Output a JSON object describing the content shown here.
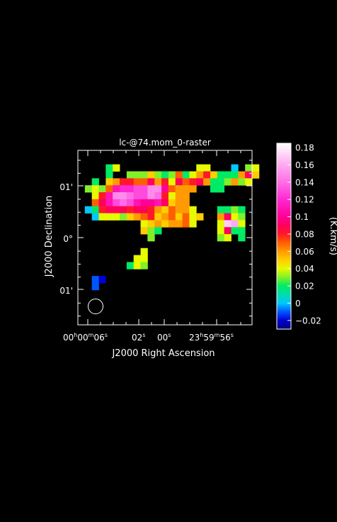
{
  "chart_data": {
    "type": "heatmap",
    "title": "lc-@74.mom_0-raster",
    "xlabel": "J2000 Right Ascension",
    "ylabel": "J2000 Declination",
    "colorbar_label": "(K.km/s)",
    "colorbar_range": [
      -0.03,
      0.185
    ],
    "colorbar_ticks": [
      "0.18",
      "0.16",
      "0.14",
      "0.12",
      "0.1",
      "0.08",
      "0.06",
      "0.04",
      "0.02",
      "0",
      "−0.02"
    ],
    "colorbar_tick_values": [
      0.18,
      0.16,
      0.14,
      0.12,
      0.1,
      0.08,
      0.06,
      0.04,
      0.02,
      0,
      -0.02
    ],
    "x_ticks": [
      {
        "h": "00",
        "m": "00",
        "s": "06"
      },
      {
        "h": "",
        "m": "",
        "s": "02"
      },
      {
        "h": "",
        "m": "",
        "s": "00"
      },
      {
        "h": "23",
        "m": "59",
        "s": "56"
      }
    ],
    "y_ticks": [
      "01'",
      "0°",
      "01'"
    ],
    "grid": {
      "cols": 25,
      "rows": 25,
      "missing_value": "nan",
      "pixels": [
        [
          4,
          2,
          0.02
        ],
        [
          5,
          2,
          0.04
        ],
        [
          17,
          2,
          0.04
        ],
        [
          18,
          2,
          0.04
        ],
        [
          22,
          2,
          0.0
        ],
        [
          24,
          2,
          0.03
        ],
        [
          25,
          2,
          0.04
        ],
        [
          4,
          3,
          0.02
        ],
        [
          7,
          3,
          0.03
        ],
        [
          8,
          3,
          0.03
        ],
        [
          9,
          3,
          0.03
        ],
        [
          10,
          3,
          0.05
        ],
        [
          11,
          3,
          0.03
        ],
        [
          12,
          3,
          0.02
        ],
        [
          13,
          3,
          0.03
        ],
        [
          14,
          3,
          0.07
        ],
        [
          15,
          3,
          0.02
        ],
        [
          16,
          3,
          0.04
        ],
        [
          17,
          3,
          0.06
        ],
        [
          18,
          3,
          0.08
        ],
        [
          19,
          3,
          0.05
        ],
        [
          20,
          3,
          0.02
        ],
        [
          21,
          3,
          0.02
        ],
        [
          22,
          3,
          0.02
        ],
        [
          23,
          3,
          0.06
        ],
        [
          24,
          3,
          0.09
        ],
        [
          25,
          3,
          0.05
        ],
        [
          2,
          4,
          0.02
        ],
        [
          4,
          4,
          0.05
        ],
        [
          5,
          4,
          0.06
        ],
        [
          6,
          4,
          0.08
        ],
        [
          7,
          4,
          0.08
        ],
        [
          8,
          4,
          0.07
        ],
        [
          9,
          4,
          0.07
        ],
        [
          10,
          4,
          0.09
        ],
        [
          11,
          4,
          0.06
        ],
        [
          12,
          4,
          0.08
        ],
        [
          13,
          4,
          0.04
        ],
        [
          14,
          4,
          0.09
        ],
        [
          15,
          4,
          0.07
        ],
        [
          16,
          4,
          0.08
        ],
        [
          17,
          4,
          0.09
        ],
        [
          18,
          4,
          0.06
        ],
        [
          19,
          4,
          0.02
        ],
        [
          20,
          4,
          0.02
        ],
        [
          21,
          4,
          0.03
        ],
        [
          22,
          4,
          0.06
        ],
        [
          23,
          4,
          0.03
        ],
        [
          24,
          4,
          0.04
        ],
        [
          1,
          5,
          0.03
        ],
        [
          2,
          5,
          0.04
        ],
        [
          3,
          5,
          0.03
        ],
        [
          4,
          5,
          0.07
        ],
        [
          5,
          5,
          0.11
        ],
        [
          6,
          5,
          0.12
        ],
        [
          7,
          5,
          0.12
        ],
        [
          8,
          5,
          0.13
        ],
        [
          9,
          5,
          0.13
        ],
        [
          10,
          5,
          0.15
        ],
        [
          11,
          5,
          0.15
        ],
        [
          12,
          5,
          0.1
        ],
        [
          13,
          5,
          0.07
        ],
        [
          14,
          5,
          0.06
        ],
        [
          15,
          5,
          0.06
        ],
        [
          16,
          5,
          0.06
        ],
        [
          19,
          5,
          0.02
        ],
        [
          20,
          5,
          0.02
        ],
        [
          2,
          6,
          0.04
        ],
        [
          3,
          6,
          0.08
        ],
        [
          4,
          6,
          0.11
        ],
        [
          5,
          6,
          0.15
        ],
        [
          6,
          6,
          0.15
        ],
        [
          7,
          6,
          0.14
        ],
        [
          8,
          6,
          0.13
        ],
        [
          9,
          6,
          0.13
        ],
        [
          10,
          6,
          0.15
        ],
        [
          11,
          6,
          0.14
        ],
        [
          12,
          6,
          0.08
        ],
        [
          13,
          6,
          0.04
        ],
        [
          14,
          6,
          0.06
        ],
        [
          15,
          6,
          0.06
        ],
        [
          2,
          7,
          0.07
        ],
        [
          3,
          7,
          0.09
        ],
        [
          4,
          7,
          0.11
        ],
        [
          5,
          7,
          0.13
        ],
        [
          6,
          7,
          0.14
        ],
        [
          7,
          7,
          0.13
        ],
        [
          8,
          7,
          0.11
        ],
        [
          9,
          7,
          0.1
        ],
        [
          10,
          7,
          0.1
        ],
        [
          11,
          7,
          0.11
        ],
        [
          12,
          7,
          0.09
        ],
        [
          13,
          7,
          0.05
        ],
        [
          14,
          7,
          0.06
        ],
        [
          15,
          7,
          0.06
        ],
        [
          1,
          8,
          0.0
        ],
        [
          2,
          8,
          0.02
        ],
        [
          3,
          8,
          0.08
        ],
        [
          4,
          8,
          0.09
        ],
        [
          5,
          8,
          0.09
        ],
        [
          6,
          8,
          0.09
        ],
        [
          7,
          8,
          0.08
        ],
        [
          8,
          8,
          0.09
        ],
        [
          9,
          8,
          0.09
        ],
        [
          10,
          8,
          0.08
        ],
        [
          11,
          8,
          0.06
        ],
        [
          12,
          8,
          0.05
        ],
        [
          13,
          8,
          0.07
        ],
        [
          14,
          8,
          0.06
        ],
        [
          15,
          8,
          0.06
        ],
        [
          16,
          8,
          0.04
        ],
        [
          20,
          8,
          0.02
        ],
        [
          21,
          8,
          0.02
        ],
        [
          22,
          8,
          0.03
        ],
        [
          23,
          8,
          0.02
        ],
        [
          2,
          9,
          0.0
        ],
        [
          3,
          9,
          0.04
        ],
        [
          4,
          9,
          0.04
        ],
        [
          5,
          9,
          0.04
        ],
        [
          6,
          9,
          0.03
        ],
        [
          7,
          9,
          0.05
        ],
        [
          8,
          9,
          0.06
        ],
        [
          9,
          9,
          0.07
        ],
        [
          10,
          9,
          0.08
        ],
        [
          11,
          9,
          0.05
        ],
        [
          12,
          9,
          0.06
        ],
        [
          13,
          9,
          0.07
        ],
        [
          14,
          9,
          0.05
        ],
        [
          15,
          9,
          0.07
        ],
        [
          16,
          9,
          0.04
        ],
        [
          17,
          9,
          0.05
        ],
        [
          20,
          9,
          0.06
        ],
        [
          21,
          9,
          0.09
        ],
        [
          22,
          9,
          0.04
        ],
        [
          23,
          9,
          0.03
        ],
        [
          9,
          10,
          0.04
        ],
        [
          10,
          10,
          0.05
        ],
        [
          11,
          10,
          0.06
        ],
        [
          12,
          10,
          0.05
        ],
        [
          13,
          10,
          0.06
        ],
        [
          14,
          10,
          0.06
        ],
        [
          15,
          10,
          0.07
        ],
        [
          16,
          10,
          0.04
        ],
        [
          20,
          10,
          0.04
        ],
        [
          21,
          10,
          0.17
        ],
        [
          22,
          10,
          0.16
        ],
        [
          23,
          10,
          0.04
        ],
        [
          9,
          11,
          0.05
        ],
        [
          10,
          11,
          0.03
        ],
        [
          11,
          11,
          0.02
        ],
        [
          20,
          11,
          0.04
        ],
        [
          21,
          11,
          0.09
        ],
        [
          22,
          11,
          0.02
        ],
        [
          23,
          11,
          0.02
        ],
        [
          10,
          12,
          0.03
        ],
        [
          20,
          12,
          0.03
        ],
        [
          21,
          12,
          0.04
        ],
        [
          23,
          12,
          0.02
        ],
        [
          9,
          14,
          0.04
        ],
        [
          8,
          15,
          0.04
        ],
        [
          9,
          15,
          0.04
        ],
        [
          7,
          16,
          0.02
        ],
        [
          8,
          16,
          0.04
        ],
        [
          9,
          16,
          0.03
        ],
        [
          2,
          18,
          -0.01
        ],
        [
          3,
          18,
          -0.02
        ],
        [
          2,
          19,
          -0.01
        ]
      ]
    },
    "beam": "ellipse",
    "grid_lines": false
  }
}
